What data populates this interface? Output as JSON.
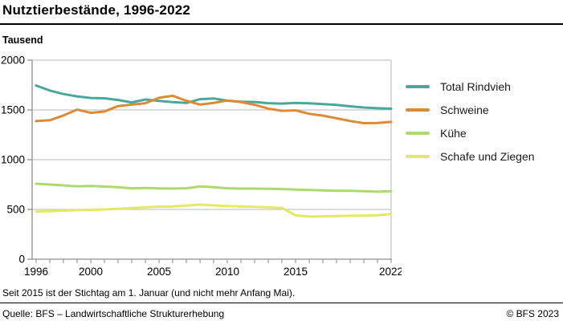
{
  "header": {
    "title": "Nutztierbestände, 1996-2022",
    "unit": "Tausend"
  },
  "chart_data": {
    "type": "line",
    "title": "Nutztierbestände, 1996-2022",
    "ylabel": "Tausend",
    "ylim": [
      0,
      2000
    ],
    "yticks": [
      0,
      500,
      1000,
      1500,
      2000
    ],
    "x": [
      1996,
      1997,
      1998,
      1999,
      2000,
      2001,
      2002,
      2003,
      2004,
      2005,
      2006,
      2007,
      2008,
      2009,
      2010,
      2011,
      2012,
      2013,
      2014,
      2015,
      2016,
      2017,
      2018,
      2019,
      2020,
      2021,
      2022
    ],
    "xtick_labels": [
      "1996",
      "2000",
      "2005",
      "2010",
      "2015",
      "2022"
    ],
    "xtick_label_years": [
      1996,
      2000,
      2005,
      2010,
      2015,
      2022
    ],
    "grid": "horizontal",
    "legend_position": "right",
    "series": [
      {
        "name": "Total Rindvieh",
        "color": "#4AA89A",
        "values": [
          1745,
          1695,
          1660,
          1636,
          1620,
          1617,
          1600,
          1576,
          1605,
          1590,
          1578,
          1570,
          1608,
          1615,
          1593,
          1582,
          1580,
          1568,
          1564,
          1571,
          1566,
          1558,
          1551,
          1536,
          1524,
          1517,
          1513
        ]
      },
      {
        "name": "Schweine",
        "color": "#DD8A35",
        "values": [
          1388,
          1397,
          1444,
          1503,
          1471,
          1484,
          1539,
          1553,
          1568,
          1622,
          1643,
          1592,
          1554,
          1570,
          1595,
          1579,
          1552,
          1514,
          1491,
          1495,
          1461,
          1443,
          1416,
          1389,
          1367,
          1369,
          1380
        ]
      },
      {
        "name": "Kühe",
        "color": "#AED970",
        "values": [
          758,
          750,
          742,
          732,
          736,
          730,
          724,
          712,
          716,
          712,
          710,
          713,
          731,
          724,
          713,
          710,
          710,
          708,
          705,
          700,
          695,
          691,
          688,
          688,
          684,
          678,
          683
        ]
      },
      {
        "name": "Schafe und Ziegen",
        "color": "#E3E965",
        "values": [
          479,
          483,
          488,
          493,
          496,
          500,
          506,
          514,
          521,
          528,
          531,
          538,
          548,
          540,
          533,
          530,
          527,
          521,
          515,
          440,
          428,
          430,
          433,
          436,
          438,
          442,
          454
        ]
      }
    ]
  },
  "footer": {
    "note": "Seit 2015 ist der Stichtag am 1. Januar (und nicht mehr Anfang Mai).",
    "source": "Quelle: BFS – Landwirtschaftliche Strukturerhebung",
    "copyright": "© BFS 2023"
  },
  "colors": {
    "grid": "#C8C8C8",
    "axis": "#8F8F8F",
    "text": "#000000"
  }
}
